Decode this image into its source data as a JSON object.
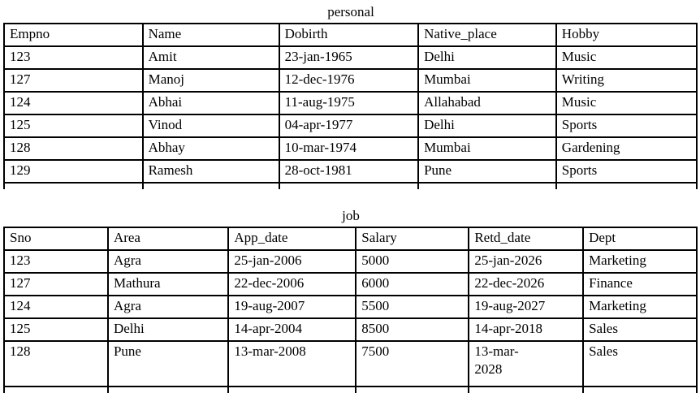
{
  "page": {
    "background_color": "#ffffff",
    "text_color": "#000000",
    "border_color": "#000000"
  },
  "tables": [
    {
      "title": "personal",
      "columns": [
        "Empno",
        "Name",
        "Dobirth",
        "Native_place",
        "Hobby"
      ],
      "rows": [
        [
          "123",
          "Amit",
          "23-jan-1965",
          "Delhi",
          "Music"
        ],
        [
          "127",
          "Manoj",
          "12-dec-1976",
          "Mumbai",
          "Writing"
        ],
        [
          "124",
          "Abhai",
          "11-aug-1975",
          "Allahabad",
          "Music"
        ],
        [
          "125",
          "Vinod",
          "04-apr-1977",
          "Delhi",
          "Sports"
        ],
        [
          "128",
          "Abhay",
          "10-mar-1974",
          "Mumbai",
          "Gardening"
        ],
        [
          "129",
          "Ramesh",
          "28-oct-1981",
          "Pune",
          "Sports"
        ]
      ]
    },
    {
      "title": "job",
      "columns": [
        "Sno",
        "Area",
        "App_date",
        "Salary",
        "Retd_date",
        "Dept"
      ],
      "rows": [
        [
          "123",
          "Agra",
          "25-jan-2006",
          "5000",
          "25-jan-2026",
          "Marketing"
        ],
        [
          "127",
          "Mathura",
          "22-dec-2006",
          "6000",
          "22-dec-2026",
          "Finance"
        ],
        [
          "124",
          "Agra",
          "19-aug-2007",
          "5500",
          "19-aug-2027",
          "Marketing"
        ],
        [
          "125",
          "Delhi",
          "14-apr-2004",
          "8500",
          "14-apr-2018",
          "Sales"
        ],
        [
          "128",
          "Pune",
          "13-mar-2008",
          "7500",
          "13-mar-\n2028",
          "Sales"
        ]
      ]
    }
  ]
}
